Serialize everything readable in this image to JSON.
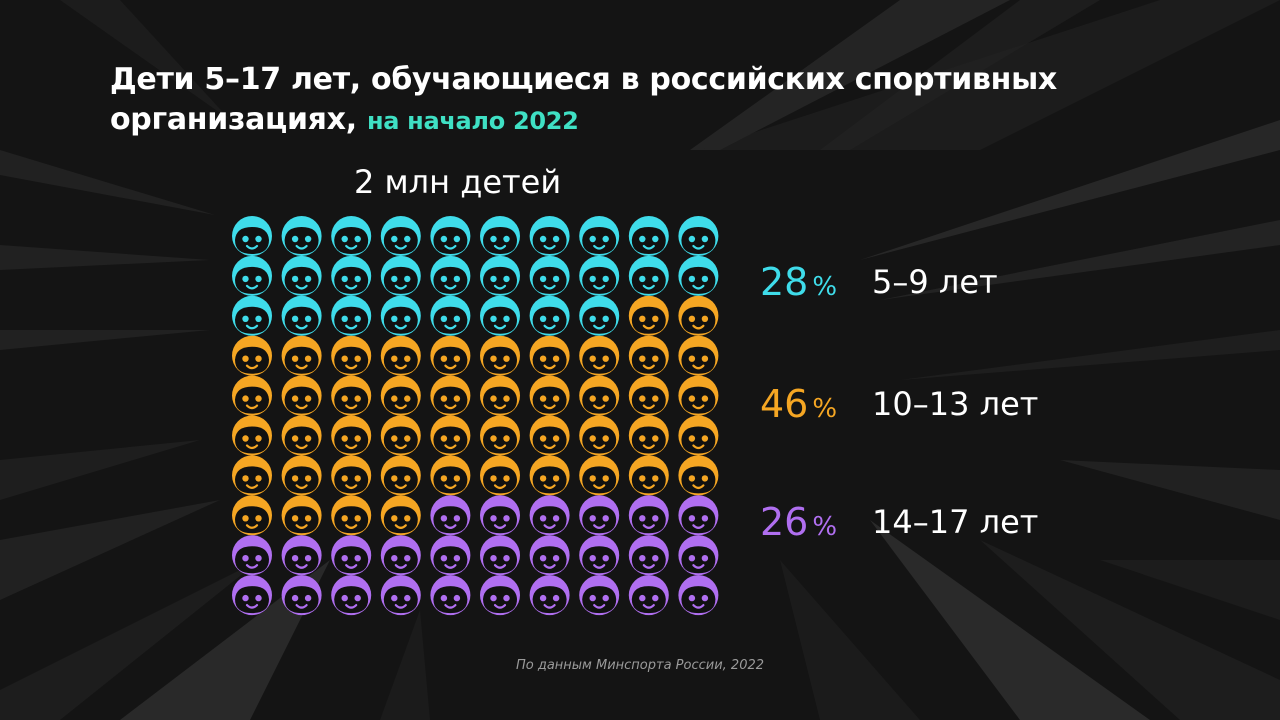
{
  "title": {
    "main": "Дети 5–17 лет, обучающиеся в российских спортивных организациях,",
    "accent": "на начало 2022"
  },
  "total_label": "2 млн детей",
  "source": "По данным Минспорта России, 2022",
  "colors": {
    "background": "#141414",
    "accent": "#3fe0c4",
    "face": "#111111"
  },
  "chart_data": {
    "type": "waffle",
    "title": "Дети 5–17 лет, обучающиеся в российских спортивных организациях, на начало 2022",
    "rows": 10,
    "columns": 10,
    "unit_icon": "child-face-icon",
    "categories": [
      "5–9 лет",
      "10–13 лет",
      "14–17 лет"
    ],
    "series": [
      {
        "label": "5–9 лет",
        "percent": "28",
        "symbol": "%",
        "value": 28,
        "color": "#3fdcea"
      },
      {
        "label": "10–13 лет",
        "percent": "46",
        "symbol": "%",
        "value": 46,
        "color": "#f5a623"
      },
      {
        "label": "14–17 лет",
        "percent": "26",
        "symbol": "%",
        "value": 26,
        "color": "#b06ff0"
      }
    ]
  }
}
